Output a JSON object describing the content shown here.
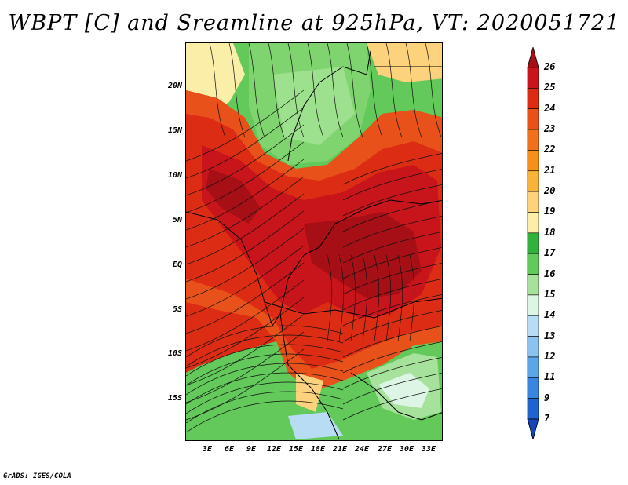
{
  "title": "WBPT [C] and Sreamline at 925hPa, VT: 2020051721",
  "credit": "GrADS: IGES/COLA",
  "map": {
    "variable": "WBPT",
    "units": "C",
    "level": "925hPa",
    "valid_time": "2020051721",
    "lat_labels": [
      "20N",
      "15N",
      "10N",
      "5N",
      "EQ",
      "5S",
      "10S",
      "15S"
    ],
    "lon_labels": [
      "3E",
      "6E",
      "9E",
      "12E",
      "15E",
      "18E",
      "21E",
      "24E",
      "27E",
      "30E",
      "33E"
    ]
  },
  "colorbar": {
    "labels": [
      "26",
      "25",
      "24",
      "23",
      "22",
      "21",
      "20",
      "19",
      "18",
      "17",
      "16",
      "15",
      "14",
      "13",
      "12",
      "11",
      "9",
      "7"
    ],
    "colors": [
      "#a50f15",
      "#c8141b",
      "#dc2d14",
      "#e8521a",
      "#f0701c",
      "#f59018",
      "#f8b43a",
      "#fcd27c",
      "#fbeea9",
      "#32b23c",
      "#62c95a",
      "#a6e29b",
      "#ddf5e4",
      "#b9dcf5",
      "#8cc2f0",
      "#5ba6e8",
      "#3a86df",
      "#1e63d0",
      "#1546b8"
    ]
  }
}
